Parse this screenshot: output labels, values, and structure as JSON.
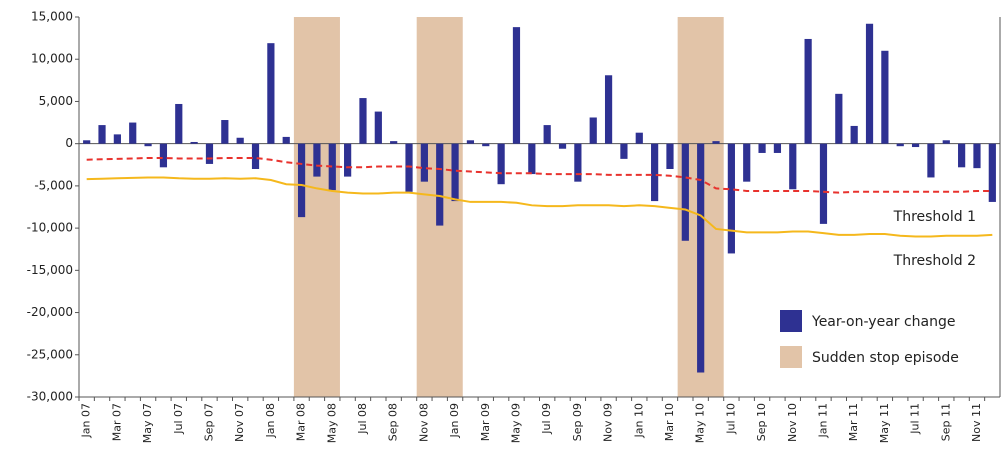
{
  "chart_data": {
    "type": "bar",
    "categories": [
      "Jan 07",
      null,
      "Mar 07",
      null,
      "May 07",
      null,
      "Jul 07",
      null,
      "Sep 07",
      null,
      "Nov 07",
      null,
      "Jan 08",
      null,
      "Mar 08",
      null,
      "May 08",
      null,
      "Jul 08",
      null,
      "Sep 08",
      null,
      "Nov 08",
      null,
      "Jan 09",
      null,
      "Mar 09",
      null,
      "May 09",
      null,
      "Jul 09",
      null,
      "Sep 09",
      null,
      "Nov 09",
      null,
      "Jan 10",
      null,
      "Mar 10",
      null,
      "May 10",
      null,
      "Jul 10",
      null,
      "Sep 10",
      null,
      "Nov 10",
      null,
      "Jan 11",
      null,
      "Mar 11",
      null,
      "May 11",
      null,
      "Jul 11",
      null,
      "Sep 11",
      null,
      "Nov 11",
      null
    ],
    "series": [
      {
        "name": "Year-on-year change",
        "type": "bar",
        "color": "#2e3192",
        "values": [
          400,
          2200,
          1100,
          2500,
          -300,
          -2800,
          4700,
          200,
          -2400,
          2800,
          700,
          -3000,
          11900,
          800,
          -8700,
          -3900,
          -5500,
          -3900,
          5400,
          3800,
          300,
          -5700,
          -4500,
          -9700,
          -6800,
          400,
          -300,
          -4800,
          13800,
          -3600,
          2200,
          -600,
          -4500,
          3100,
          8100,
          -1800,
          1300,
          -6800,
          -3000,
          -11500,
          -27100,
          300,
          -13000,
          -4500,
          -1100,
          -1100,
          -5400,
          12400,
          -9500,
          5900,
          2100,
          14200,
          11000,
          -300,
          -400,
          -4000,
          400,
          -2800,
          -2900,
          -6900
        ]
      },
      {
        "name": "Threshold 1",
        "type": "line",
        "color": "#e8322d",
        "dashed": true,
        "values": [
          -1900,
          -1850,
          -1800,
          -1750,
          -1700,
          -1700,
          -1750,
          -1750,
          -1750,
          -1700,
          -1700,
          -1700,
          -1900,
          -2200,
          -2400,
          -2600,
          -2700,
          -2800,
          -2800,
          -2700,
          -2700,
          -2700,
          -2900,
          -3000,
          -3200,
          -3300,
          -3400,
          -3500,
          -3500,
          -3500,
          -3600,
          -3600,
          -3600,
          -3600,
          -3700,
          -3700,
          -3700,
          -3700,
          -3800,
          -4000,
          -4300,
          -5300,
          -5400,
          -5600,
          -5600,
          -5600,
          -5600,
          -5600,
          -5700,
          -5800,
          -5700,
          -5700,
          -5700,
          -5700,
          -5700,
          -5700,
          -5700,
          -5700,
          -5600,
          -5600
        ]
      },
      {
        "name": "Threshold 2",
        "type": "line",
        "color": "#f5b81c",
        "dashed": false,
        "values": [
          -4200,
          -4150,
          -4100,
          -4050,
          -4000,
          -4000,
          -4100,
          -4150,
          -4150,
          -4100,
          -4150,
          -4100,
          -4300,
          -4800,
          -4900,
          -5300,
          -5600,
          -5800,
          -5900,
          -5900,
          -5800,
          -5800,
          -6000,
          -6200,
          -6600,
          -6900,
          -6900,
          -6900,
          -7000,
          -7300,
          -7400,
          -7400,
          -7300,
          -7300,
          -7300,
          -7400,
          -7300,
          -7400,
          -7600,
          -7800,
          -8500,
          -10100,
          -10300,
          -10500,
          -10500,
          -10500,
          -10400,
          -10400,
          -10600,
          -10800,
          -10800,
          -10700,
          -10700,
          -10900,
          -11000,
          -11000,
          -10900,
          -10900,
          -10900,
          -10800
        ]
      }
    ],
    "shaded_label": "Sudden stop episode",
    "shaded_color": "#e2c4a8",
    "shaded_ranges": [
      [
        14,
        16
      ],
      [
        22,
        24
      ],
      [
        39,
        41
      ]
    ],
    "ylim": [
      -30000,
      15000
    ],
    "yticks": [
      {
        "value": -30000,
        "label": "-30,000"
      },
      {
        "value": -25000,
        "label": "-25,000"
      },
      {
        "value": -20000,
        "label": "-20,000"
      },
      {
        "value": -15000,
        "label": "-15,000"
      },
      {
        "value": -10000,
        "label": "-10,000"
      },
      {
        "value": -5000,
        "label": "-5,000"
      },
      0,
      {
        "value": 5000,
        "label": "5,000"
      },
      {
        "value": 10000,
        "label": "10,000"
      },
      {
        "value": 15000,
        "label": "15,000"
      }
    ],
    "grid": false
  }
}
